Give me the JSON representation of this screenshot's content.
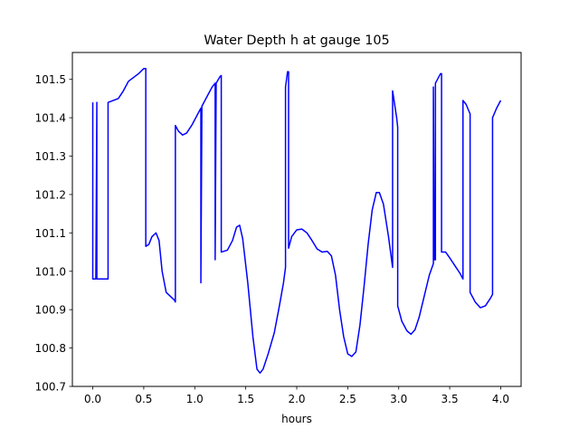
{
  "chart_data": {
    "type": "line",
    "title": "Water Depth h at gauge 105",
    "xlabel": "hours",
    "ylabel": "",
    "xlim": [
      -0.2,
      4.2
    ],
    "ylim": [
      100.7,
      101.57
    ],
    "xticks": [
      0.0,
      0.5,
      1.0,
      1.5,
      2.0,
      2.5,
      3.0,
      3.5,
      4.0
    ],
    "xtick_labels": [
      "0.0",
      "0.5",
      "1.0",
      "1.5",
      "2.0",
      "2.5",
      "3.0",
      "3.5",
      "4.0"
    ],
    "yticks": [
      100.7,
      100.8,
      100.9,
      101.0,
      101.1,
      101.2,
      101.3,
      101.4,
      101.5
    ],
    "ytick_labels": [
      "100.7",
      "100.8",
      "100.9",
      "101.0",
      "101.1",
      "101.2",
      "101.3",
      "101.4",
      "101.5"
    ],
    "grid": false,
    "series": [
      {
        "color": "#0000ff",
        "points": [
          [
            0.0,
            101.44
          ],
          [
            0.0,
            100.98
          ],
          [
            0.03,
            100.98
          ],
          [
            0.04,
            101.44
          ],
          [
            0.04,
            100.98
          ],
          [
            0.15,
            100.98
          ],
          [
            0.15,
            101.44
          ],
          [
            0.2,
            101.445
          ],
          [
            0.25,
            101.45
          ],
          [
            0.3,
            101.47
          ],
          [
            0.35,
            101.495
          ],
          [
            0.4,
            101.505
          ],
          [
            0.45,
            101.515
          ],
          [
            0.5,
            101.528
          ],
          [
            0.52,
            101.528
          ],
          [
            0.52,
            101.065
          ],
          [
            0.55,
            101.07
          ],
          [
            0.58,
            101.09
          ],
          [
            0.62,
            101.1
          ],
          [
            0.65,
            101.08
          ],
          [
            0.68,
            101.0
          ],
          [
            0.72,
            100.945
          ],
          [
            0.76,
            100.935
          ],
          [
            0.8,
            100.925
          ],
          [
            0.81,
            100.92
          ],
          [
            0.81,
            101.38
          ],
          [
            0.84,
            101.365
          ],
          [
            0.88,
            101.355
          ],
          [
            0.92,
            101.36
          ],
          [
            0.97,
            101.38
          ],
          [
            1.02,
            101.405
          ],
          [
            1.06,
            101.425
          ],
          [
            1.06,
            100.97
          ],
          [
            1.07,
            101.43
          ],
          [
            1.12,
            101.455
          ],
          [
            1.17,
            101.48
          ],
          [
            1.2,
            101.49
          ],
          [
            1.2,
            101.03
          ],
          [
            1.21,
            101.49
          ],
          [
            1.25,
            101.508
          ],
          [
            1.26,
            101.51
          ],
          [
            1.26,
            101.05
          ],
          [
            1.32,
            101.055
          ],
          [
            1.37,
            101.08
          ],
          [
            1.41,
            101.115
          ],
          [
            1.44,
            101.12
          ],
          [
            1.47,
            101.085
          ],
          [
            1.52,
            100.97
          ],
          [
            1.57,
            100.83
          ],
          [
            1.61,
            100.745
          ],
          [
            1.64,
            100.735
          ],
          [
            1.67,
            100.745
          ],
          [
            1.72,
            100.785
          ],
          [
            1.78,
            100.84
          ],
          [
            1.83,
            100.91
          ],
          [
            1.87,
            100.97
          ],
          [
            1.89,
            101.01
          ],
          [
            1.89,
            101.48
          ],
          [
            1.91,
            101.52
          ],
          [
            1.92,
            101.52
          ],
          [
            1.92,
            101.06
          ],
          [
            1.95,
            101.09
          ],
          [
            2.0,
            101.108
          ],
          [
            2.05,
            101.11
          ],
          [
            2.1,
            101.1
          ],
          [
            2.15,
            101.08
          ],
          [
            2.2,
            101.058
          ],
          [
            2.25,
            101.05
          ],
          [
            2.3,
            101.052
          ],
          [
            2.34,
            101.04
          ],
          [
            2.38,
            100.99
          ],
          [
            2.42,
            100.9
          ],
          [
            2.46,
            100.83
          ],
          [
            2.5,
            100.785
          ],
          [
            2.54,
            100.778
          ],
          [
            2.58,
            100.79
          ],
          [
            2.62,
            100.86
          ],
          [
            2.66,
            100.96
          ],
          [
            2.7,
            101.07
          ],
          [
            2.74,
            101.16
          ],
          [
            2.78,
            101.205
          ],
          [
            2.81,
            101.205
          ],
          [
            2.85,
            101.175
          ],
          [
            2.9,
            101.09
          ],
          [
            2.94,
            101.01
          ],
          [
            2.94,
            101.47
          ],
          [
            2.98,
            101.4
          ],
          [
            2.99,
            101.375
          ],
          [
            2.99,
            100.91
          ],
          [
            3.03,
            100.87
          ],
          [
            3.08,
            100.845
          ],
          [
            3.12,
            100.836
          ],
          [
            3.16,
            100.848
          ],
          [
            3.2,
            100.88
          ],
          [
            3.25,
            100.935
          ],
          [
            3.3,
            100.99
          ],
          [
            3.34,
            101.02
          ],
          [
            3.34,
            101.48
          ],
          [
            3.35,
            101.03
          ],
          [
            3.36,
            101.03
          ],
          [
            3.36,
            101.49
          ],
          [
            3.4,
            101.51
          ],
          [
            3.41,
            101.515
          ],
          [
            3.42,
            101.515
          ],
          [
            3.42,
            101.05
          ],
          [
            3.46,
            101.05
          ],
          [
            3.5,
            101.035
          ],
          [
            3.55,
            101.015
          ],
          [
            3.6,
            100.995
          ],
          [
            3.63,
            100.98
          ],
          [
            3.63,
            101.445
          ],
          [
            3.66,
            101.435
          ],
          [
            3.7,
            101.41
          ],
          [
            3.7,
            100.945
          ],
          [
            3.75,
            100.92
          ],
          [
            3.8,
            100.905
          ],
          [
            3.85,
            100.91
          ],
          [
            3.9,
            100.93
          ],
          [
            3.92,
            100.94
          ],
          [
            3.92,
            101.4
          ],
          [
            3.96,
            101.425
          ],
          [
            4.0,
            101.445
          ]
        ]
      }
    ]
  }
}
